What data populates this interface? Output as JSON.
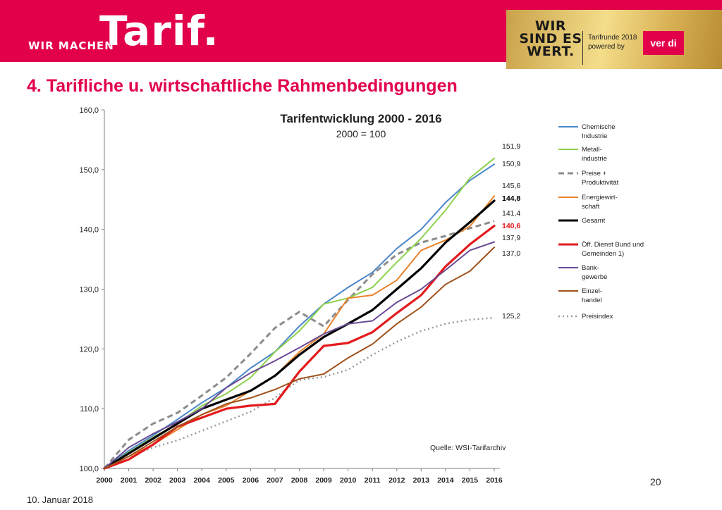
{
  "header": {
    "brand_small": "WIR MACHEN",
    "brand_big": "Tarif.",
    "campaign_lines": [
      "WIR",
      "SIND ES",
      "WERT."
    ],
    "tarifrunde_lines": [
      "Tarifrunde 2018",
      "powered by"
    ],
    "union_logo": "ver di",
    "brand_color": "#e2004b"
  },
  "slide_title": "4. Tarifliche u. wirtschaftliche Rahmenbedingungen",
  "footer": {
    "date": "10. Januar 2018",
    "page": "20"
  },
  "chart_data": {
    "type": "line",
    "title": "Tarifentwicklung 2000 - 2016",
    "subtitle": "2000 = 100",
    "source": "Quelle: WSI-Tarifarchiv",
    "x": [
      2000,
      2001,
      2002,
      2003,
      2004,
      2005,
      2006,
      2007,
      2008,
      2009,
      2010,
      2011,
      2012,
      2013,
      2014,
      2015,
      2016
    ],
    "x_tick_labels": [
      "2000",
      "2001",
      "2002",
      "2003",
      "2004",
      "2005",
      "2006",
      "2007",
      "2008",
      "2009",
      "2010",
      "2011",
      "2012",
      "2013",
      "2014",
      "2015",
      "2016"
    ],
    "ylim": [
      100,
      160
    ],
    "y_ticks": [
      100,
      110,
      120,
      130,
      140,
      150,
      160
    ],
    "y_tick_labels": [
      "100,0",
      "110,0",
      "120,0",
      "130,0",
      "140,0",
      "150,0",
      "160,0"
    ],
    "grid": false,
    "legend_position": "right",
    "series": [
      {
        "name": "Chemische Industrie",
        "legend_lines": [
          "Chemische",
          "Industrie"
        ],
        "color": "#4a86c8",
        "width": 2,
        "dash": "",
        "values": [
          100,
          103.0,
          105.5,
          108.2,
          111.0,
          113.5,
          116.8,
          119.5,
          123.8,
          127.5,
          130.3,
          132.8,
          136.8,
          140.0,
          144.5,
          148.2,
          150.9
        ],
        "end_label": "150,9",
        "end_label_color": "#222222",
        "end_label_bold": false
      },
      {
        "name": "Metall-industrie",
        "legend_lines": [
          "Metall-",
          "industrie"
        ],
        "color": "#8dd14d",
        "width": 2,
        "dash": "",
        "values": [
          100,
          102.7,
          105.2,
          107.5,
          110.5,
          112.5,
          115.2,
          119.5,
          123.0,
          127.5,
          128.5,
          130.3,
          134.5,
          138.5,
          143.2,
          148.6,
          151.9
        ],
        "end_label": "151,9",
        "end_label_color": "#222222",
        "end_label_bold": false
      },
      {
        "name": "Preise + Produktivität",
        "legend_lines": [
          "Preise +",
          "Produktivität"
        ],
        "color": "#8c8c8c",
        "width": 3,
        "dash": "8,5",
        "values": [
          100,
          104.8,
          107.5,
          109.3,
          112.2,
          115.2,
          119.2,
          123.5,
          126.2,
          123.8,
          128.2,
          132.5,
          135.8,
          137.8,
          138.9,
          140.2,
          141.4
        ],
        "end_label": "141,4",
        "end_label_color": "#222222",
        "end_label_bold": false
      },
      {
        "name": "Energiewirtschaft",
        "legend_lines": [
          "Energiewirt-",
          "schaft"
        ],
        "color": "#e8822a",
        "width": 2,
        "dash": "",
        "values": [
          100,
          102.0,
          104.0,
          106.5,
          109.0,
          110.5,
          113.0,
          115.5,
          119.5,
          122.5,
          128.5,
          129.0,
          131.5,
          136.5,
          138.2,
          140.5,
          145.6
        ],
        "end_label": "145,6",
        "end_label_color": "#222222",
        "end_label_bold": false
      },
      {
        "name": "Gesamt",
        "legend_lines": [
          "Gesamt"
        ],
        "color": "#000000",
        "width": 3.2,
        "dash": "",
        "values": [
          100,
          102.5,
          105.0,
          107.5,
          110.0,
          111.5,
          113.0,
          115.5,
          119.0,
          122.0,
          124.2,
          126.5,
          130.0,
          133.5,
          137.8,
          141.2,
          144.8
        ],
        "end_label": "144,8",
        "end_label_color": "#000000",
        "end_label_bold": true
      },
      {
        "name": "Öff. Dienst Bund und Gemeinden 1)",
        "legend_lines": [
          "Öff. Dienst Bund und",
          "Gemeinden 1)"
        ],
        "color": "#e31a1c",
        "width": 3.2,
        "dash": "",
        "values": [
          100,
          101.5,
          104.0,
          107.0,
          108.5,
          110.0,
          110.5,
          110.8,
          116.2,
          120.5,
          121.0,
          122.8,
          126.0,
          129.0,
          133.8,
          137.5,
          140.6
        ],
        "end_label": "140,6",
        "end_label_color": "#e31a1c",
        "end_label_bold": true
      },
      {
        "name": "Bankgewerbe",
        "legend_lines": [
          "Bank-",
          "gewerbe"
        ],
        "color": "#6a4b93",
        "width": 2,
        "dash": "",
        "values": [
          100,
          103.5,
          105.8,
          107.8,
          110.0,
          113.5,
          116.0,
          118.0,
          120.2,
          122.5,
          124.2,
          124.7,
          127.8,
          130.0,
          133.2,
          136.5,
          137.9
        ],
        "end_label": "137,9",
        "end_label_color": "#222222",
        "end_label_bold": false
      },
      {
        "name": "Einzelhandel",
        "legend_lines": [
          "Einzel-",
          "handel"
        ],
        "color": "#a0521c",
        "width": 2,
        "dash": "",
        "values": [
          100,
          102.0,
          104.5,
          107.0,
          109.0,
          110.8,
          111.8,
          113.2,
          115.0,
          115.8,
          118.5,
          120.8,
          124.2,
          127.0,
          130.8,
          133.0,
          137.0
        ],
        "end_label": "137,0",
        "end_label_color": "#222222",
        "end_label_bold": false
      },
      {
        "name": "Preisindex",
        "legend_lines": [
          "Preisindex"
        ],
        "color": "#9a9a9a",
        "width": 2.5,
        "dash": "2,4",
        "values": [
          100,
          102.0,
          103.5,
          104.7,
          106.3,
          107.9,
          109.5,
          111.8,
          114.8,
          115.3,
          116.5,
          119.0,
          121.2,
          123.0,
          124.2,
          124.9,
          125.2
        ],
        "end_label": "125,2",
        "end_label_color": "#222222",
        "end_label_bold": false
      }
    ]
  }
}
